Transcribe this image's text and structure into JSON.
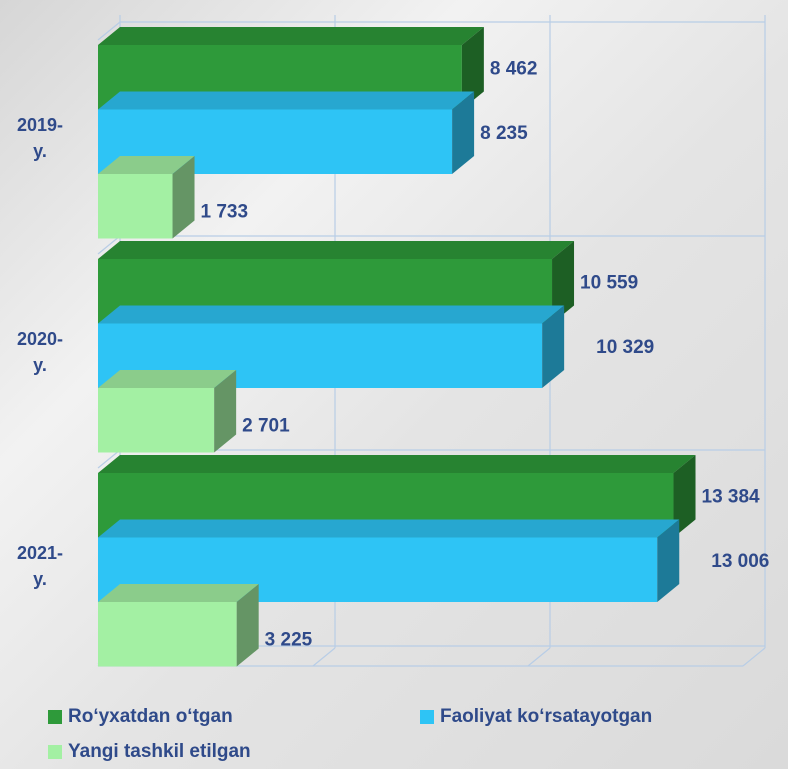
{
  "chart_data": {
    "type": "bar3d_horizontal",
    "categories": [
      "2019- y.",
      "2020- y.",
      "2021- y."
    ],
    "series": [
      {
        "name": "Ro‘yxatdan o‘tgan",
        "color": "#2e9a3a",
        "values": [
          8462,
          10559,
          13384
        ],
        "value_labels": [
          "8 462",
          "10 559",
          "13 384"
        ]
      },
      {
        "name": "Faoliyat ko‘rsatayotgan",
        "color": "#2ec4f5",
        "values": [
          8235,
          10329,
          13006
        ],
        "value_labels": [
          "8 235",
          "10 329",
          "13 006"
        ]
      },
      {
        "name": "Yangi tashkil etilgan",
        "color": "#a3f0a3",
        "values": [
          1733,
          2701,
          3225
        ],
        "value_labels": [
          "1 733",
          "2 701",
          "3 225"
        ]
      }
    ],
    "xlim": [
      0,
      15000
    ],
    "xticks": [
      0,
      5000,
      10000,
      15000
    ],
    "grid": true
  }
}
